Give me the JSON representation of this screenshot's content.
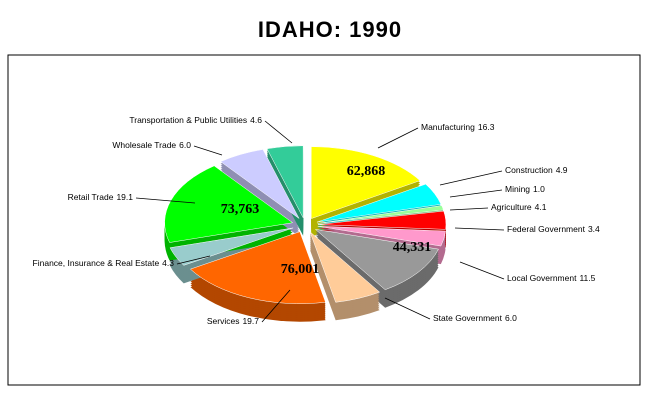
{
  "chart_data": {
    "type": "pie3d",
    "title": "IDAHO:  1990",
    "categories": [
      "Manufacturing",
      "Construction",
      "Mining",
      "Agriculture",
      "Federal Government",
      "Local Government",
      "State Government",
      "Services",
      "Finance, Insurance & Real Estate",
      "Retail Trade",
      "Wholesale Trade",
      "Transportation & Public Utilities"
    ],
    "values": [
      16.3,
      4.9,
      1.0,
      4.1,
      3.4,
      11.5,
      6.0,
      19.7,
      4.3,
      19.1,
      6.0,
      4.6
    ],
    "value_labels": [
      "16.3",
      "4.9",
      "1.0",
      "4.1",
      "3.4",
      "11.5",
      "6.0",
      "19.7",
      "4.3",
      "19.1",
      "6.0",
      "4.6"
    ],
    "inside_values": [
      62868,
      null,
      null,
      null,
      null,
      44331,
      null,
      76001,
      null,
      73763,
      null,
      null
    ],
    "inside_value_labels": [
      "62,868",
      null,
      null,
      null,
      null,
      "44,331",
      null,
      "76,001",
      null,
      "73,763",
      null,
      null
    ],
    "colors": [
      "#ffff00",
      "#00ffff",
      "#99ff99",
      "#ff0000",
      "#ff99cc",
      "#999999",
      "#ffcc99",
      "#ff6600",
      "#99cccc",
      "#00ff00",
      "#ccccff",
      "#33cc99"
    ]
  }
}
